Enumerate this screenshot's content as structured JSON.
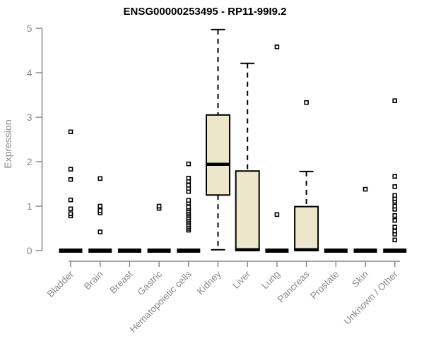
{
  "chart_data": {
    "type": "boxplot",
    "title": "ENSG00000253495 - RP11-99I9.2",
    "ylabel": "Expression",
    "xlabel": "",
    "ylim": [
      0,
      5
    ],
    "yticks": [
      0,
      1,
      2,
      3,
      4,
      5
    ],
    "grid": false,
    "legend": "none",
    "categories": [
      "Bladder",
      "Brain",
      "Breast",
      "Gastric",
      "Hematopoietic cells",
      "Kidney",
      "Liver",
      "Lung",
      "Pancreas",
      "Prostate",
      "Skin",
      "Unknown / Other"
    ],
    "boxes": [
      {
        "category": "Bladder",
        "min": 0,
        "q1": 0,
        "median": 0,
        "q3": 0,
        "max": 0,
        "outliers": [
          0.78,
          0.83,
          0.94,
          1.14,
          1.6,
          1.83,
          2.67
        ]
      },
      {
        "category": "Brain",
        "min": 0,
        "q1": 0,
        "median": 0,
        "q3": 0,
        "max": 0,
        "outliers": [
          0.42,
          0.85,
          0.9,
          1.0,
          1.62
        ]
      },
      {
        "category": "Breast",
        "min": 0,
        "q1": 0,
        "median": 0,
        "q3": 0,
        "max": 0,
        "outliers": []
      },
      {
        "category": "Gastric",
        "min": 0,
        "q1": 0,
        "median": 0,
        "q3": 0,
        "max": 0,
        "outliers": [
          0.95,
          1.0
        ]
      },
      {
        "category": "Hematopoietic cells",
        "min": 0,
        "q1": 0,
        "median": 0,
        "q3": 0,
        "max": 0,
        "outliers": [
          0.46,
          0.5,
          0.54,
          0.58,
          0.62,
          0.66,
          0.7,
          0.74,
          0.78,
          0.82,
          0.86,
          0.9,
          0.94,
          0.98,
          1.07,
          1.13,
          1.33,
          1.4,
          1.47,
          1.56,
          1.63,
          1.95
        ]
      },
      {
        "category": "Kidney",
        "min": 0.02,
        "q1": 1.25,
        "median": 1.94,
        "q3": 3.05,
        "max": 4.97,
        "outliers": []
      },
      {
        "category": "Liver",
        "min": 0,
        "q1": 0,
        "median": 0.02,
        "q3": 1.79,
        "max": 4.21,
        "outliers": []
      },
      {
        "category": "Lung",
        "min": 0,
        "q1": 0,
        "median": 0,
        "q3": 0,
        "max": 0,
        "outliers": [
          0.81,
          4.58
        ]
      },
      {
        "category": "Pancreas",
        "min": 0,
        "q1": 0,
        "median": 0.02,
        "q3": 0.99,
        "max": 1.78,
        "outliers": [
          3.33
        ]
      },
      {
        "category": "Prostate",
        "min": 0,
        "q1": 0,
        "median": 0,
        "q3": 0,
        "max": 0,
        "outliers": []
      },
      {
        "category": "Skin",
        "min": 0,
        "q1": 0,
        "median": 0,
        "q3": 0,
        "max": 0,
        "outliers": [
          1.38
        ]
      },
      {
        "category": "Unknown / Other",
        "min": 0,
        "q1": 0,
        "median": 0,
        "q3": 0,
        "max": 0,
        "outliers": [
          0.24,
          0.37,
          0.44,
          0.53,
          0.68,
          0.79,
          0.93,
          1.0,
          1.11,
          1.17,
          1.24,
          1.44,
          1.67,
          3.37
        ]
      }
    ],
    "style": {
      "box_fill": "#ECE7CB",
      "box_stroke": "#000000",
      "median_color": "#000000",
      "whisker_style": "dashed",
      "outlier_marker": "open-square",
      "outlier_color": "#000000",
      "axis_color": "#8a8a8a",
      "tick_label_color": "#8a8a8a",
      "title_color": "#000000",
      "background": "#ffffff"
    }
  }
}
